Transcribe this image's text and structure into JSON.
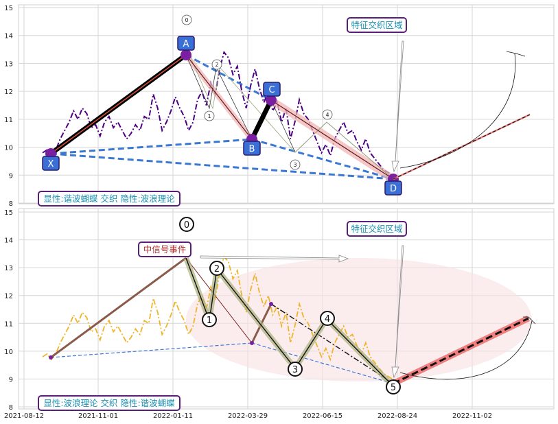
{
  "chart_data": [
    {
      "type": "line",
      "panel": "top",
      "ylim": [
        8,
        15
      ],
      "yticks": [
        "8",
        "9",
        "10",
        "11",
        "12",
        "13",
        "14",
        "15"
      ],
      "price_color": "#4b0082",
      "price_series": [
        9.8,
        9.9,
        9.7,
        9.9,
        10.3,
        10.6,
        10.9,
        11.3,
        11.0,
        11.4,
        11.2,
        10.7,
        10.8,
        10.4,
        10.9,
        11.1,
        10.7,
        10.9,
        10.6,
        10.3,
        10.5,
        10.8,
        10.6,
        11.1,
        11.0,
        11.9,
        11.4,
        10.6,
        10.9,
        11.3,
        11.8,
        11.4,
        11.1,
        10.6,
        10.9,
        11.7,
        12.0,
        11.5,
        12.3,
        11.9,
        12.8,
        13.4,
        13.2,
        12.6,
        12.9,
        12.0,
        11.4,
        12.2,
        12.8,
        12.1,
        11.6,
        12.0,
        11.3,
        11.6,
        10.9,
        11.4,
        10.3,
        10.9,
        11.7,
        11.2,
        11.0,
        10.6,
        10.2,
        9.8,
        10.1,
        9.7,
        10.3,
        10.6,
        10.9,
        10.5,
        10.6,
        10.2,
        9.9,
        10.3,
        9.8,
        9.6,
        9.4,
        9.2,
        9.1,
        9.0,
        8.9
      ],
      "pattern_points": [
        {
          "label": "X",
          "value": 9.75
        },
        {
          "label": "A",
          "value": 13.35
        },
        {
          "label": "B",
          "value": 10.25
        },
        {
          "label": "C",
          "value": 11.65
        },
        {
          "label": "D",
          "value": 8.85
        }
      ],
      "wave_labels": [
        "0",
        "1",
        "2",
        "3",
        "4"
      ],
      "zone_label": "特征交织区域",
      "caption": "显性:谐波蝴蝶 交织 隐性:波浪理论"
    },
    {
      "type": "line",
      "panel": "bottom",
      "ylim": [
        8,
        15
      ],
      "yticks": [
        "8",
        "9",
        "10",
        "11",
        "12",
        "13",
        "14",
        "15"
      ],
      "price_color": "#f0b429",
      "xticks": [
        "2021-08-12",
        "2021-11-01",
        "2022-01-11",
        "2022-03-29",
        "2022-06-15",
        "2022-08-24",
        "2022-11-02"
      ],
      "wave_points": [
        {
          "label": "0",
          "value": 13.35
        },
        {
          "label": "1",
          "value": 11.1
        },
        {
          "label": "2",
          "value": 12.9
        },
        {
          "label": "3",
          "value": 9.35
        },
        {
          "label": "4",
          "value": 11.1
        },
        {
          "label": "5",
          "value": 8.7
        }
      ],
      "zone_label": "特征交织区域",
      "event_label": "中信号事件",
      "caption": "显性:波浪理论 交织 隐性:谐波蝴蝶"
    }
  ]
}
